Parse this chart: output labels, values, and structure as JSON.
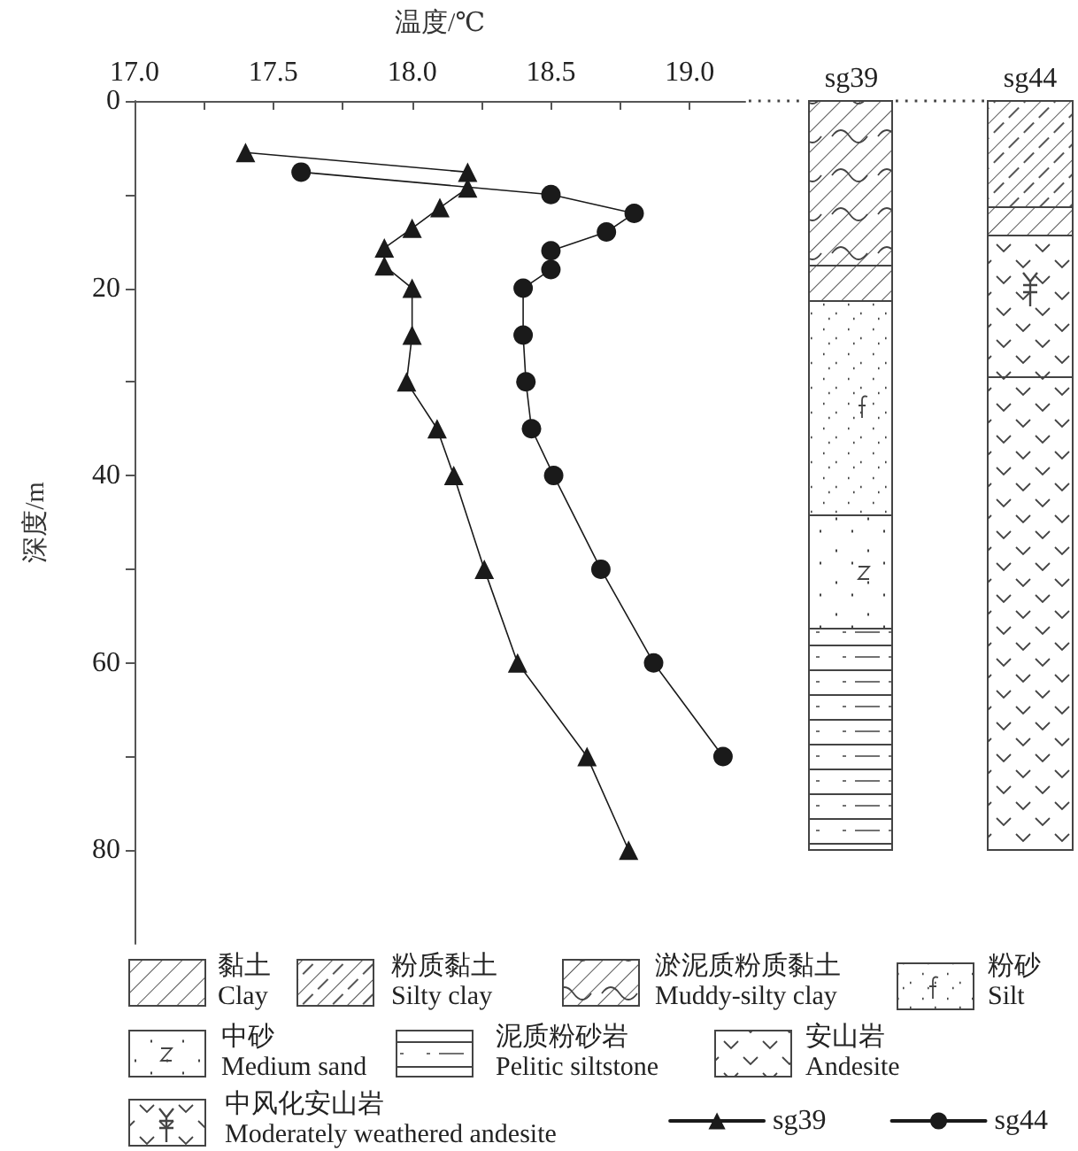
{
  "chart_data": {
    "type": "line",
    "xlabel": "温度/℃",
    "ylabel": "深度/m",
    "xlim": [
      17,
      19.2
    ],
    "xticks": [
      {
        "value": 17,
        "label": "17.0"
      },
      {
        "value": 17.25,
        "label": null
      },
      {
        "value": 17.5,
        "label": "17.5"
      },
      {
        "value": 17.75,
        "label": null
      },
      {
        "value": 18,
        "label": "18.0"
      },
      {
        "value": 18.25,
        "label": null
      },
      {
        "value": 18.5,
        "label": "18.5"
      },
      {
        "value": 18.75,
        "label": null
      },
      {
        "value": 19,
        "label": "19.0"
      }
    ],
    "ylim": [
      90,
      0
    ],
    "yticks": [
      0,
      {
        "value": 10,
        "label": null
      },
      20,
      {
        "value": 30,
        "label": null
      },
      40,
      {
        "value": 50,
        "label": null
      },
      60,
      {
        "value": 70,
        "label": null
      },
      80
    ],
    "legend": "bottom right",
    "line_style": "solid",
    "series": [
      {
        "name": "sg39",
        "color": "#1a1a1a",
        "marker": "triangle",
        "x": [
          17.4,
          18.2,
          18.2,
          18.1,
          18.0,
          17.9,
          17.9,
          18.0,
          18.0,
          17.98,
          18.09,
          18.15,
          18.26,
          18.38,
          18.63,
          18.78
        ],
        "values": [
          5.5,
          7.6,
          9.3,
          11.4,
          13.6,
          15.7,
          17.6,
          20,
          25,
          30,
          35,
          40,
          50,
          60,
          70,
          80
        ]
      },
      {
        "name": "sg44",
        "color": "#1a1a1a",
        "marker": "circle",
        "x": [
          17.6,
          18.5,
          18.8,
          18.7,
          18.5,
          18.5,
          18.4,
          18.4,
          18.41,
          18.43,
          18.51,
          18.68,
          18.87,
          19.12
        ],
        "values": [
          7.6,
          10,
          12,
          14,
          16,
          18,
          20,
          25,
          30,
          35,
          40,
          50,
          60,
          70
        ]
      }
    ],
    "annotations": [
      "sg39",
      "sg44",
      "黏土\nClay",
      "粉质黏土\nSilty clay",
      "淤泥质粉质黏土\nMuddy-silty clay",
      "粉砂\nSilt",
      "中砂\nMedium sand",
      "泥质粉砂岩\nPelitic siltstone",
      "安山岩\nAndesite",
      "中风化安山岩\nModerately weathered andesite"
    ]
  }
}
